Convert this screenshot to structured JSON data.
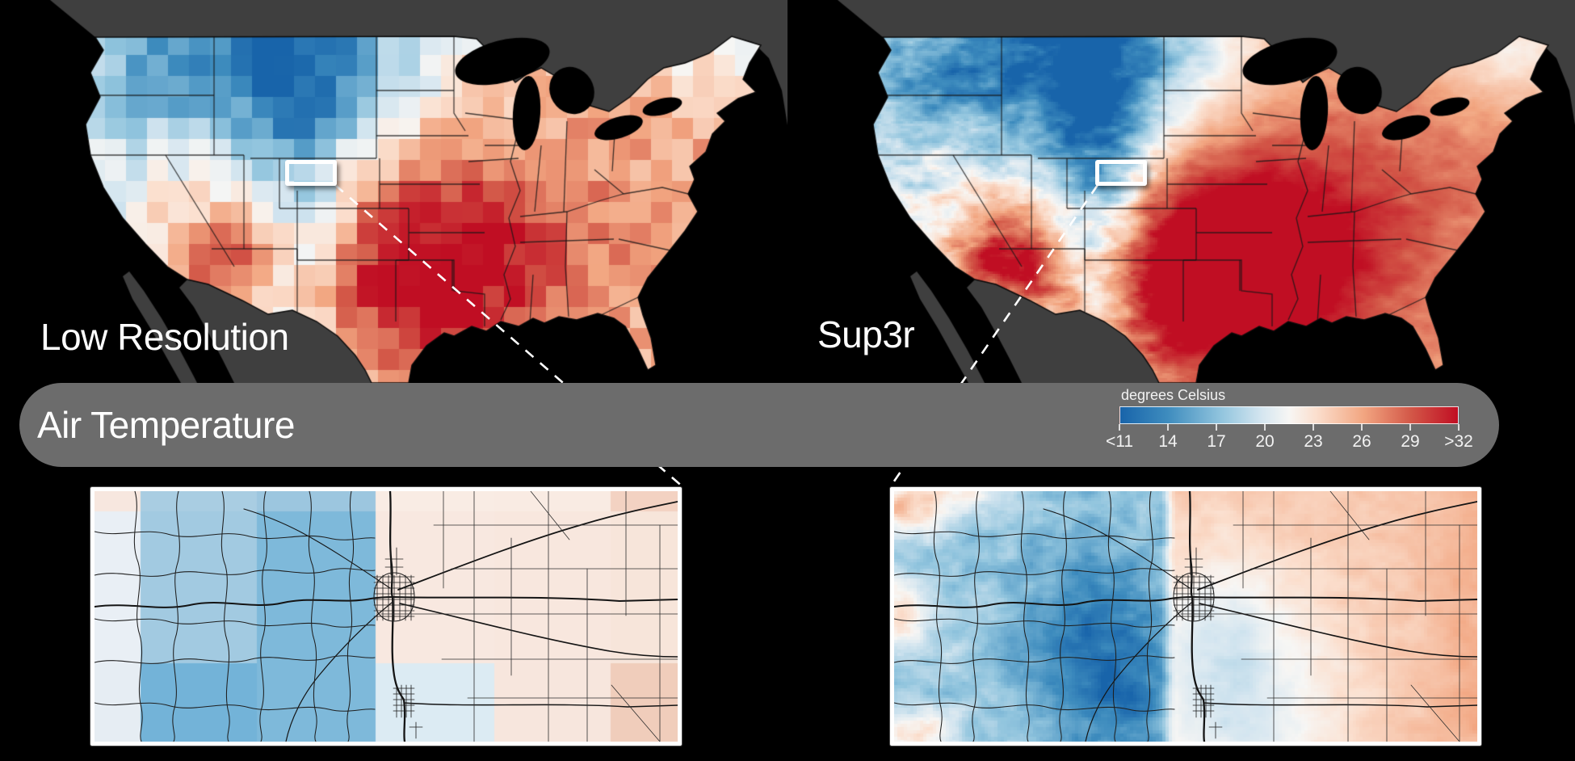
{
  "banner": {
    "title": "Air Temperature"
  },
  "panels": [
    {
      "label": "Low Resolution"
    },
    {
      "label": "Sup3r"
    }
  ],
  "colorbar": {
    "label": "degrees Celsius",
    "ticks": [
      "<11",
      "14",
      "17",
      "20",
      "23",
      "26",
      "29",
      ">32"
    ],
    "tick_values": [
      11,
      14,
      17,
      20,
      23,
      26,
      29,
      32
    ]
  },
  "colors": {
    "background": "#000000",
    "neighbor_land": "#3f3f3f",
    "banner": "#6c6c6c",
    "text": "#ffffff",
    "frame_white": "#ffffff",
    "colormap_stops": [
      {
        "p": 0.0,
        "c": "#1864aa"
      },
      {
        "p": 0.14,
        "c": "#3e8cbe"
      },
      {
        "p": 0.3,
        "c": "#92c5de"
      },
      {
        "p": 0.42,
        "c": "#d5e6f0"
      },
      {
        "p": 0.5,
        "c": "#f7f6f4"
      },
      {
        "p": 0.58,
        "c": "#fbdfce"
      },
      {
        "p": 0.72,
        "c": "#f2a681"
      },
      {
        "p": 0.86,
        "c": "#d35848"
      },
      {
        "p": 1.0,
        "c": "#c00e23"
      }
    ]
  },
  "chart_data": {
    "type": "heatmap",
    "title": "Air Temperature",
    "panels": [
      "Low Resolution",
      "Sup3r"
    ],
    "legend": {
      "label": "degrees Celsius",
      "tick_labels": [
        "<11",
        "14",
        "17",
        "20",
        "23",
        "26",
        "29",
        ">32"
      ],
      "tick_values": [
        11,
        14,
        17,
        20,
        23,
        26,
        29,
        32
      ],
      "range": [
        11,
        32
      ]
    }
  }
}
